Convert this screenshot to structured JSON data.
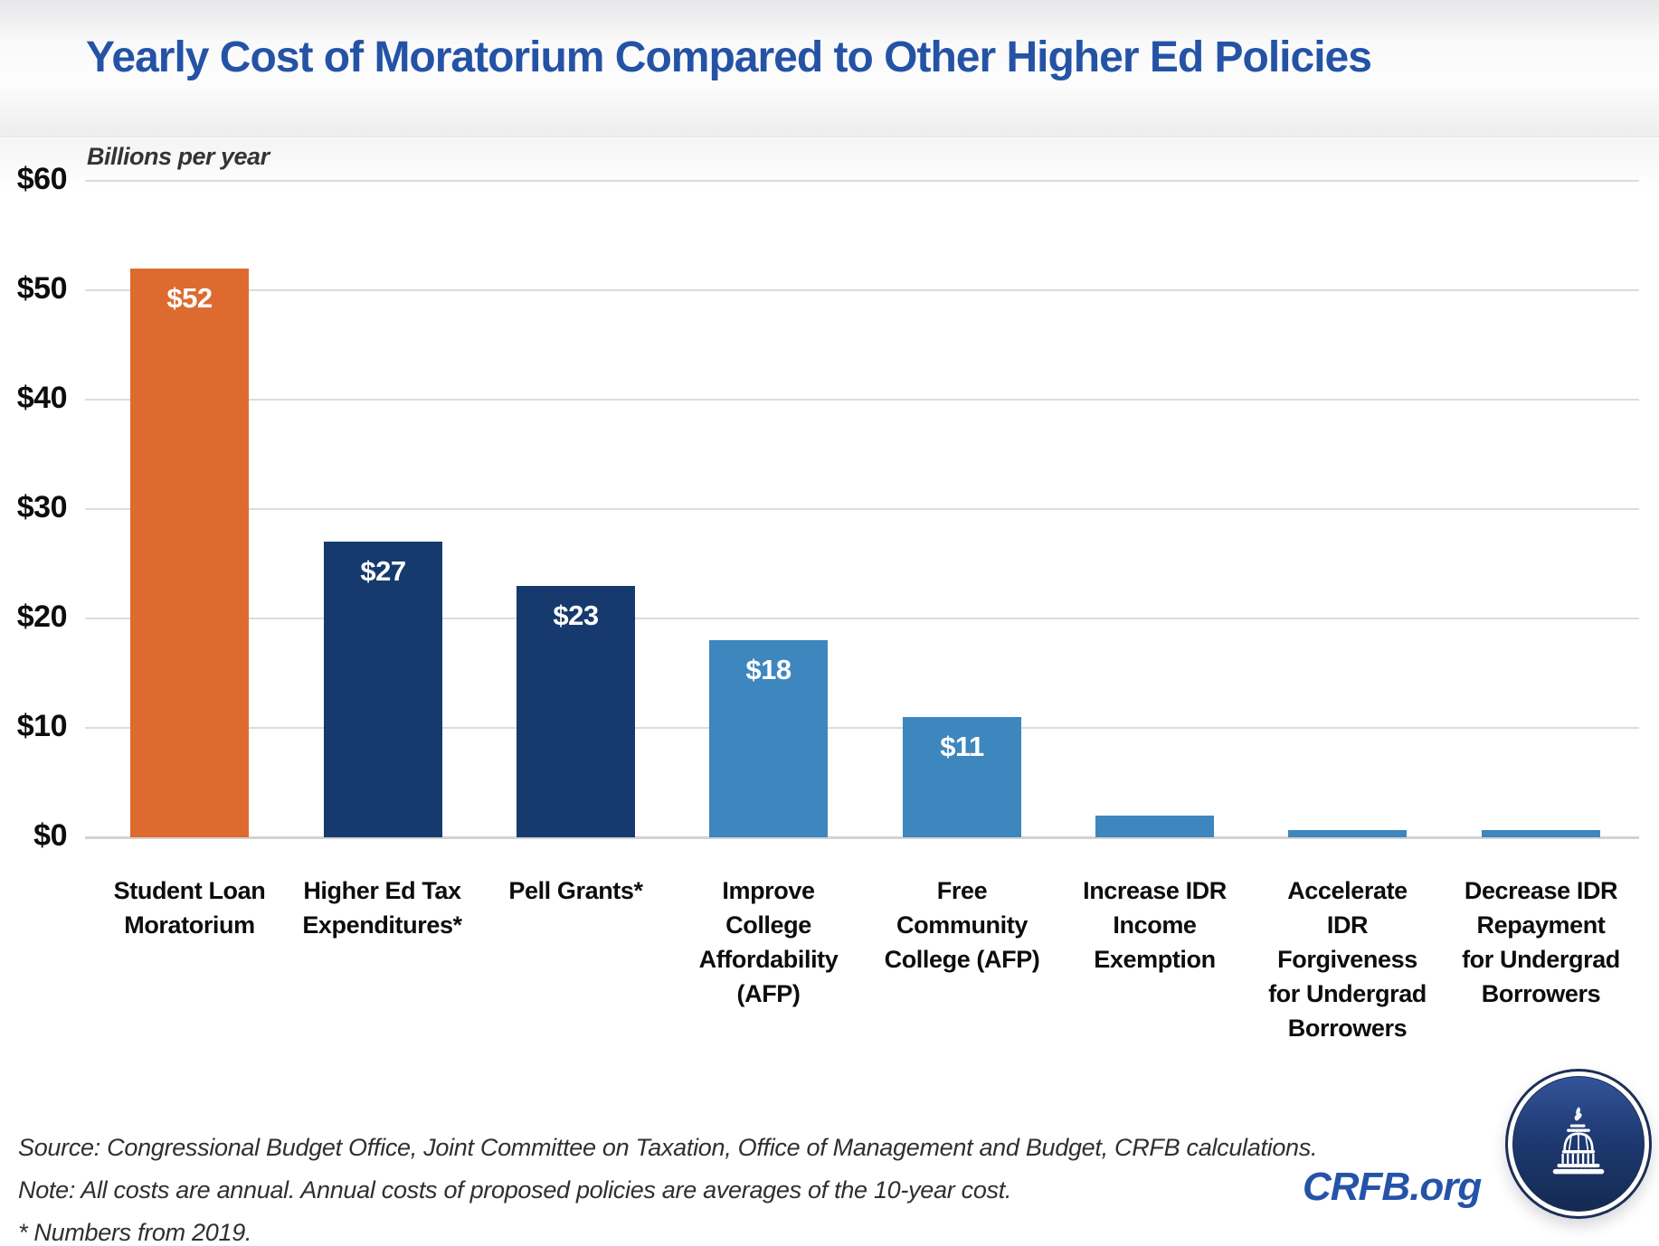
{
  "chart_data": {
    "type": "bar",
    "title": "Yearly Cost of Moratorium Compared to Other Higher Ed Policies",
    "ylabel": "Billions per year",
    "xlabel": "",
    "ylim": [
      0,
      60
    ],
    "ytick_interval": 10,
    "ytick_prefix": "$",
    "grid": true,
    "categories": [
      "Student Loan\nMoratorium",
      "Higher Ed Tax\nExpenditures*",
      "Pell Grants*",
      "Improve\nCollege\nAffordability\n(AFP)",
      "Free\nCommunity\nCollege (AFP)",
      "Increase IDR\nIncome\nExemption",
      "Accelerate\nIDR\nForgiveness\nfor Undergrad\nBorrowers",
      "Decrease IDR\nRepayment\nfor Undergrad\nBorrowers"
    ],
    "values": [
      52,
      27,
      23,
      18,
      11,
      2,
      0.7,
      0.7
    ],
    "bar_labels": [
      "$52",
      "$27",
      "$23",
      "$18",
      "$11",
      "",
      "",
      ""
    ],
    "bar_colors": [
      "#DD6B2F",
      "#163A6E",
      "#163A6E",
      "#3E86BE",
      "#3E86BE",
      "#3E86BE",
      "#3E86BE",
      "#3E86BE"
    ],
    "legend": "none"
  },
  "notes": {
    "source": "Source: Congressional Budget Office, Joint Committee on Taxation, Office of Management and Budget, CRFB calculations.",
    "note": "Note: All costs are annual. Annual costs of proposed policies are averages of the 10-year cost.",
    "footnote": "* Numbers from 2019."
  },
  "branding": {
    "site": "CRFB.org",
    "logo_icon": "capitol-dome-icon"
  },
  "colors": {
    "title_blue": "#2453A6",
    "wordmark_blue": "#2453A8",
    "bar_orange": "#DD6B2F",
    "bar_navy": "#163A6E",
    "bar_blue": "#3E86BE",
    "gridline": "#DCDCDC",
    "axis_line": "#D3D3D3",
    "label_black": "#0D0D0D",
    "note_gray": "#2F2F2F",
    "logo_navy_dark": "#142A52",
    "logo_navy_light": "#33549A"
  }
}
